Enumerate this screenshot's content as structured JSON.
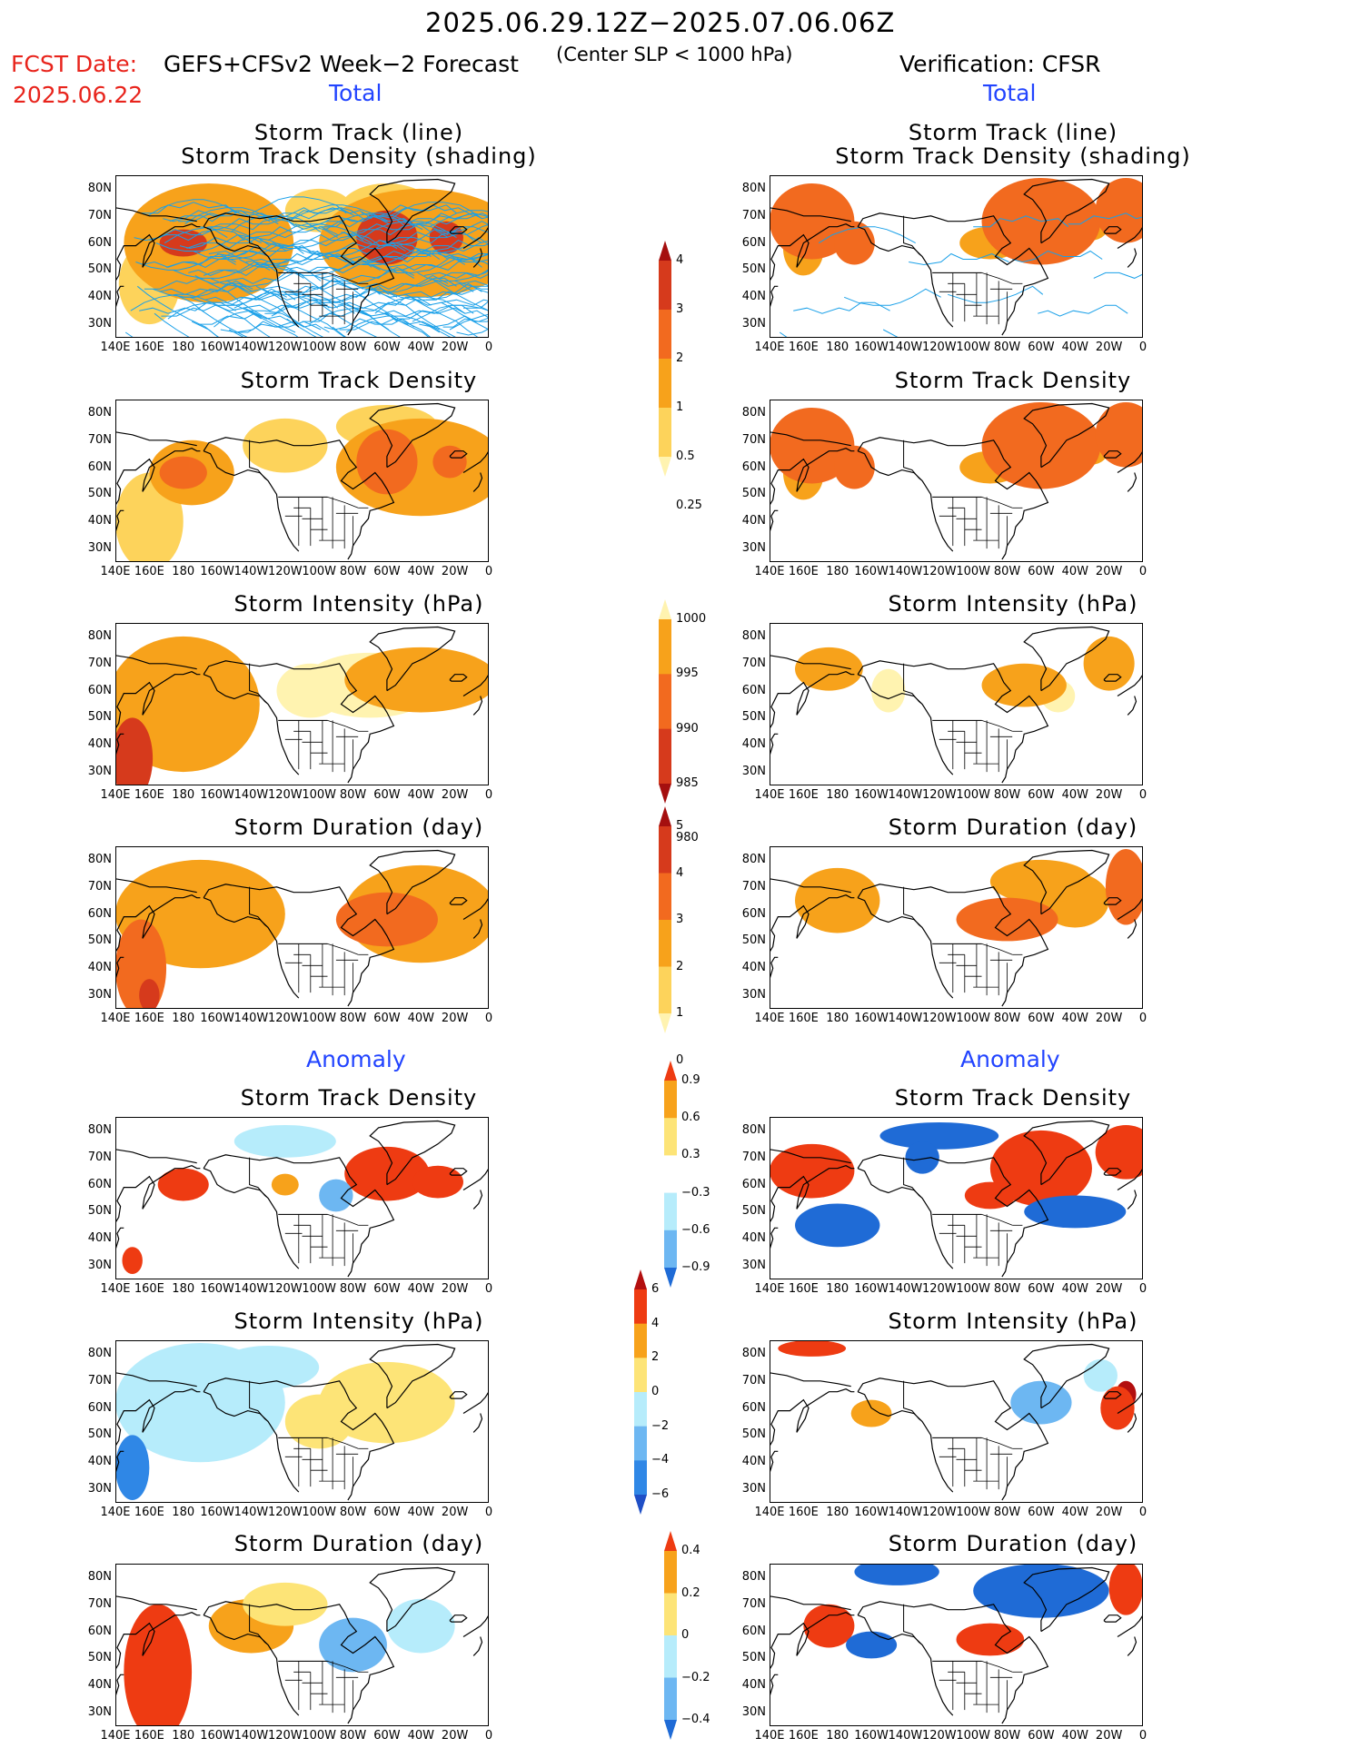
{
  "header": {
    "date_range": "2025.06.29.12Z−2025.07.06.06Z",
    "fcst_label": "FCST Date:",
    "fcst_date": "2025.06.22",
    "model": "GEFS+CFSv2 Week−2 Forecast",
    "criterion": "(Center SLP < 1000 hPa)",
    "verification": "Verification: CFSR"
  },
  "sections": {
    "total": "Total",
    "anomaly": "Anomaly"
  },
  "titles": {
    "track_line": "Storm Track (line)",
    "track_shading": "Storm Track Density (shading)",
    "density": "Storm Track Density",
    "intensity": "Storm Intensity (hPa)",
    "duration": "Storm Duration (day)"
  },
  "axes": {
    "lat_labels": [
      "80N",
      "70N",
      "60N",
      "50N",
      "40N",
      "30N"
    ],
    "lon_labels": [
      "140E",
      "160E",
      "180",
      "160W",
      "140W",
      "120W",
      "100W",
      "80W",
      "60W",
      "40W",
      "20W",
      "0"
    ]
  },
  "colorbars": {
    "density_total": {
      "labels": [
        "4",
        "3",
        "2",
        "1",
        "0.5",
        "0.25"
      ],
      "colors": [
        "#a50f0f",
        "#d63a1c",
        "#f26a1f",
        "#f7a21b",
        "#fdd35b",
        "#fff3b0"
      ]
    },
    "intensity_total": {
      "labels": [
        "1000",
        "995",
        "990",
        "985",
        "980"
      ],
      "colors": [
        "#fff3b0",
        "#f7a21b",
        "#f26a1f",
        "#d63a1c",
        "#a50f0f"
      ]
    },
    "duration_total": {
      "labels": [
        "5",
        "4",
        "3",
        "2",
        "1",
        "0"
      ],
      "colors": [
        "#a50f0f",
        "#d63a1c",
        "#f26a1f",
        "#f7a21b",
        "#fdd35b",
        "#fff3b0"
      ]
    },
    "density_anom": {
      "labels": [
        "0.9",
        "0.6",
        "0.3",
        "−0.3",
        "−0.6",
        "−0.9"
      ],
      "colors": [
        "#ee3b12",
        "#f7a21b",
        "#fde477",
        "#ffffff",
        "#b6ecfb",
        "#6db7f2",
        "#1f6bd6"
      ]
    },
    "intensity_anom": {
      "labels": [
        "6",
        "4",
        "2",
        "0",
        "−2",
        "−4",
        "−6"
      ],
      "colors": [
        "#b30f0f",
        "#ee3b12",
        "#f7a21b",
        "#fde477",
        "#b6ecfb",
        "#6db7f2",
        "#2f87e6",
        "#1f4fc6"
      ]
    },
    "duration_anom": {
      "labels": [
        "0.4",
        "0.2",
        "0",
        "−0.2",
        "−0.4"
      ],
      "colors": [
        "#ee3b12",
        "#f7a21b",
        "#fde477",
        "#b6ecfb",
        "#6db7f2",
        "#1f6bd6"
      ]
    }
  },
  "map": {
    "lat_range": [
      25,
      85
    ],
    "lon_range": [
      140,
      360
    ],
    "colors": {
      "land_outline": "#000000",
      "track_line": "#1aa0e8"
    }
  }
}
